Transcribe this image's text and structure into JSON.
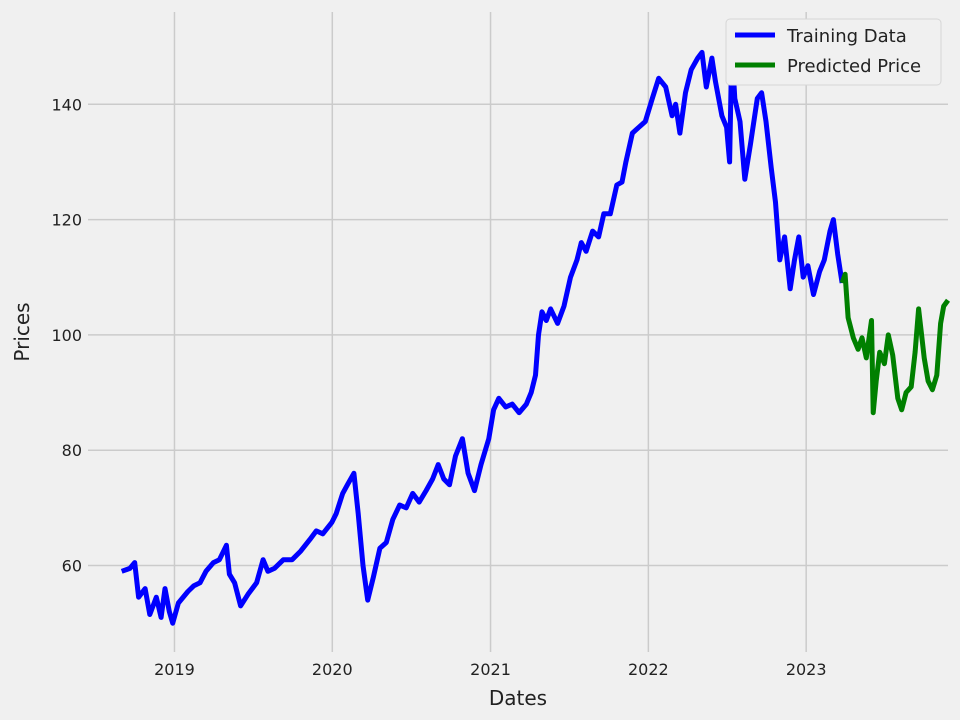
{
  "chart_data": {
    "type": "line",
    "title": "",
    "xlabel": "Dates",
    "ylabel": "Prices",
    "xlim": [
      "2018-06-15",
      "2023-11-25"
    ],
    "ylim": [
      45,
      156
    ],
    "x_ticks": [
      "2019-01-01",
      "2020-01-01",
      "2021-01-01",
      "2022-01-01",
      "2023-01-01"
    ],
    "x_tick_labels": [
      "2019",
      "2020",
      "2021",
      "2022",
      "2023"
    ],
    "y_ticks": [
      60,
      80,
      100,
      120,
      140
    ],
    "y_tick_labels": [
      "60",
      "80",
      "100",
      "120",
      "140"
    ],
    "grid": true,
    "legend_position": "top-right",
    "series": [
      {
        "name": "Training Data",
        "color": "#0000ff",
        "points": [
          [
            "2018-09-01",
            59
          ],
          [
            "2018-09-20",
            59.5
          ],
          [
            "2018-10-01",
            60.5
          ],
          [
            "2018-10-10",
            54.5
          ],
          [
            "2018-10-25",
            56
          ],
          [
            "2018-11-05",
            51.5
          ],
          [
            "2018-11-20",
            54.5
          ],
          [
            "2018-12-01",
            51
          ],
          [
            "2018-12-10",
            56
          ],
          [
            "2018-12-20",
            52
          ],
          [
            "2018-12-28",
            50
          ],
          [
            "2019-01-10",
            53.5
          ],
          [
            "2019-02-01",
            55.5
          ],
          [
            "2019-02-15",
            56.5
          ],
          [
            "2019-03-01",
            57
          ],
          [
            "2019-03-15",
            59
          ],
          [
            "2019-04-01",
            60.5
          ],
          [
            "2019-04-15",
            61
          ],
          [
            "2019-05-01",
            63.5
          ],
          [
            "2019-05-08",
            58.5
          ],
          [
            "2019-05-20",
            57
          ],
          [
            "2019-06-03",
            53
          ],
          [
            "2019-06-20",
            55
          ],
          [
            "2019-07-10",
            57
          ],
          [
            "2019-07-25",
            61
          ],
          [
            "2019-08-05",
            59
          ],
          [
            "2019-08-20",
            59.5
          ],
          [
            "2019-09-10",
            61
          ],
          [
            "2019-09-30",
            61
          ],
          [
            "2019-10-20",
            62.5
          ],
          [
            "2019-11-10",
            64.5
          ],
          [
            "2019-11-25",
            66
          ],
          [
            "2019-12-10",
            65.5
          ],
          [
            "2019-12-31",
            67.5
          ],
          [
            "2020-01-10",
            69
          ],
          [
            "2020-01-25",
            72.5
          ],
          [
            "2020-02-05",
            74
          ],
          [
            "2020-02-20",
            76
          ],
          [
            "2020-03-01",
            69
          ],
          [
            "2020-03-12",
            60
          ],
          [
            "2020-03-23",
            54
          ],
          [
            "2020-04-05",
            58
          ],
          [
            "2020-04-20",
            63
          ],
          [
            "2020-05-05",
            64
          ],
          [
            "2020-05-20",
            68
          ],
          [
            "2020-06-05",
            70.5
          ],
          [
            "2020-06-20",
            70
          ],
          [
            "2020-07-05",
            72.5
          ],
          [
            "2020-07-20",
            71
          ],
          [
            "2020-08-05",
            73
          ],
          [
            "2020-08-20",
            75
          ],
          [
            "2020-09-02",
            77.5
          ],
          [
            "2020-09-15",
            75
          ],
          [
            "2020-09-28",
            74
          ],
          [
            "2020-10-12",
            79
          ],
          [
            "2020-10-28",
            82
          ],
          [
            "2020-11-10",
            76
          ],
          [
            "2020-11-25",
            73
          ],
          [
            "2020-12-10",
            77.5
          ],
          [
            "2020-12-28",
            82
          ],
          [
            "2021-01-08",
            87
          ],
          [
            "2021-01-20",
            89
          ],
          [
            "2021-02-05",
            87.5
          ],
          [
            "2021-02-20",
            88
          ],
          [
            "2021-03-08",
            86.5
          ],
          [
            "2021-03-25",
            88
          ],
          [
            "2021-04-05",
            90
          ],
          [
            "2021-04-15",
            93
          ],
          [
            "2021-04-22",
            100
          ],
          [
            "2021-04-30",
            104
          ],
          [
            "2021-05-10",
            102.5
          ],
          [
            "2021-05-20",
            104.5
          ],
          [
            "2021-06-05",
            102
          ],
          [
            "2021-06-20",
            105
          ],
          [
            "2021-07-05",
            110
          ],
          [
            "2021-07-20",
            113
          ],
          [
            "2021-07-30",
            116
          ],
          [
            "2021-08-10",
            114.5
          ],
          [
            "2021-08-25",
            118
          ],
          [
            "2021-09-08",
            117
          ],
          [
            "2021-09-20",
            121
          ],
          [
            "2021-10-05",
            121
          ],
          [
            "2021-10-20",
            126
          ],
          [
            "2021-11-01",
            126.5
          ],
          [
            "2021-11-10",
            130
          ],
          [
            "2021-11-25",
            135
          ],
          [
            "2021-12-10",
            136
          ],
          [
            "2021-12-25",
            137
          ],
          [
            "2022-01-10",
            141
          ],
          [
            "2022-01-25",
            144.5
          ],
          [
            "2022-02-10",
            143
          ],
          [
            "2022-02-25",
            138
          ],
          [
            "2022-03-05",
            140
          ],
          [
            "2022-03-15",
            135
          ],
          [
            "2022-03-28",
            142
          ],
          [
            "2022-04-10",
            146
          ],
          [
            "2022-04-25",
            148
          ],
          [
            "2022-05-05",
            149
          ],
          [
            "2022-05-15",
            143
          ],
          [
            "2022-05-28",
            148
          ],
          [
            "2022-06-05",
            144
          ],
          [
            "2022-06-20",
            138
          ],
          [
            "2022-07-01",
            136
          ],
          [
            "2022-07-08",
            130
          ],
          [
            "2022-07-13",
            150
          ],
          [
            "2022-07-20",
            141
          ],
          [
            "2022-08-01",
            137
          ],
          [
            "2022-08-12",
            127
          ],
          [
            "2022-08-25",
            133
          ],
          [
            "2022-09-10",
            141
          ],
          [
            "2022-09-20",
            142
          ],
          [
            "2022-09-30",
            137
          ],
          [
            "2022-10-12",
            129
          ],
          [
            "2022-10-22",
            123
          ],
          [
            "2022-11-01",
            113
          ],
          [
            "2022-11-12",
            117
          ],
          [
            "2022-11-25",
            108
          ],
          [
            "2022-12-05",
            113
          ],
          [
            "2022-12-15",
            117
          ],
          [
            "2022-12-25",
            110
          ],
          [
            "2023-01-05",
            112
          ],
          [
            "2023-01-18",
            107
          ],
          [
            "2023-02-01",
            111
          ],
          [
            "2023-02-12",
            113
          ],
          [
            "2023-02-25",
            118
          ],
          [
            "2023-03-05",
            120
          ],
          [
            "2023-03-15",
            114
          ],
          [
            "2023-03-25",
            109
          ]
        ]
      },
      {
        "name": "Predicted Price",
        "color": "#008000",
        "points": [
          [
            "2023-03-25",
            109
          ],
          [
            "2023-04-01",
            110.5
          ],
          [
            "2023-04-08",
            103
          ],
          [
            "2023-04-20",
            99.5
          ],
          [
            "2023-05-01",
            97.5
          ],
          [
            "2023-05-10",
            99.5
          ],
          [
            "2023-05-20",
            96
          ],
          [
            "2023-06-01",
            102.5
          ],
          [
            "2023-06-05",
            86.5
          ],
          [
            "2023-06-12",
            92
          ],
          [
            "2023-06-20",
            97
          ],
          [
            "2023-07-01",
            95
          ],
          [
            "2023-07-10",
            100
          ],
          [
            "2023-07-20",
            96.5
          ],
          [
            "2023-08-01",
            89
          ],
          [
            "2023-08-10",
            87
          ],
          [
            "2023-08-20",
            90
          ],
          [
            "2023-09-01",
            91
          ],
          [
            "2023-09-10",
            97
          ],
          [
            "2023-09-18",
            104.5
          ],
          [
            "2023-09-25",
            100
          ],
          [
            "2023-10-01",
            96
          ],
          [
            "2023-10-10",
            92
          ],
          [
            "2023-10-20",
            90.5
          ],
          [
            "2023-10-30",
            93
          ],
          [
            "2023-11-08",
            102
          ],
          [
            "2023-11-15",
            105
          ],
          [
            "2023-11-25",
            106
          ]
        ]
      }
    ]
  }
}
